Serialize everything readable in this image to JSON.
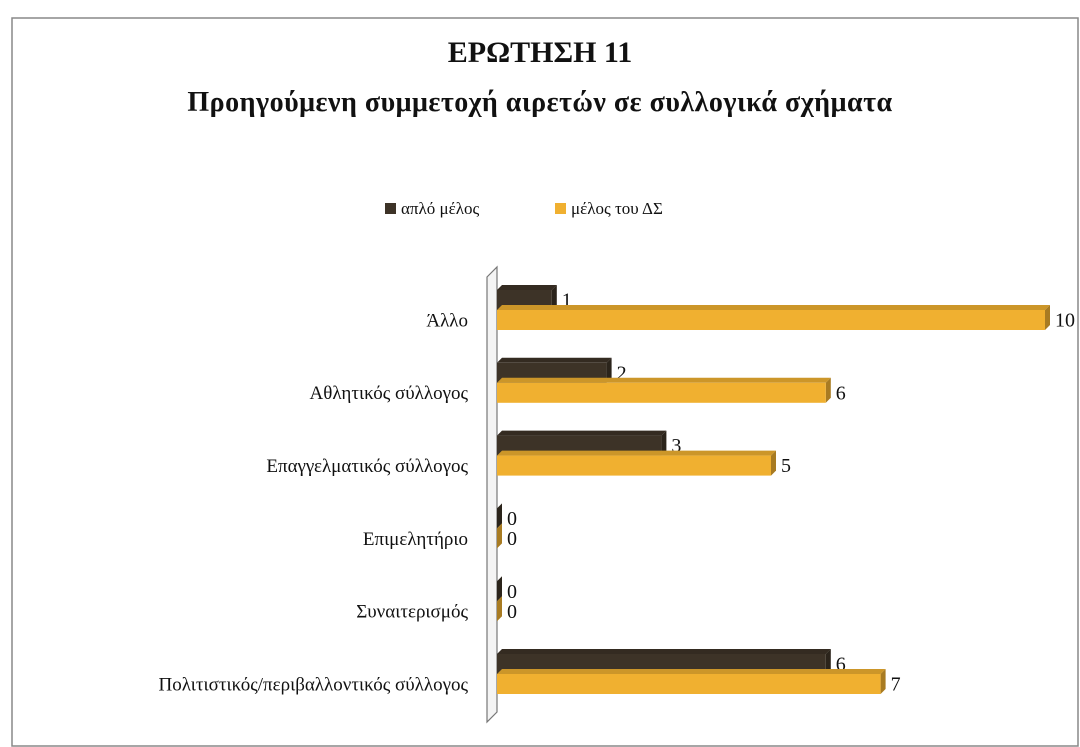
{
  "chart_data": {
    "type": "bar",
    "orientation": "horizontal",
    "title": "ΕΡΩΤΗΣΗ 11",
    "subtitle": "Προηγούμενη συμμετοχή αιρετών σε συλλογικά σχήματα",
    "categories": [
      "Άλλο",
      "Αθλητικός σύλλογος",
      "Επαγγελματικός σύλλογος",
      "Επιμελητήριο",
      "Συναιτερισμός",
      "Πολιτιστικός/περιβαλλοντικός σύλλογος"
    ],
    "series": [
      {
        "name": "απλό μέλος",
        "color": "#3d3327",
        "values": [
          1,
          2,
          3,
          0,
          0,
          6
        ]
      },
      {
        "name": "μέλος του ΔΣ",
        "color": "#f0b030",
        "values": [
          10,
          6,
          5,
          0,
          0,
          7
        ]
      }
    ],
    "legend": "top"
  }
}
